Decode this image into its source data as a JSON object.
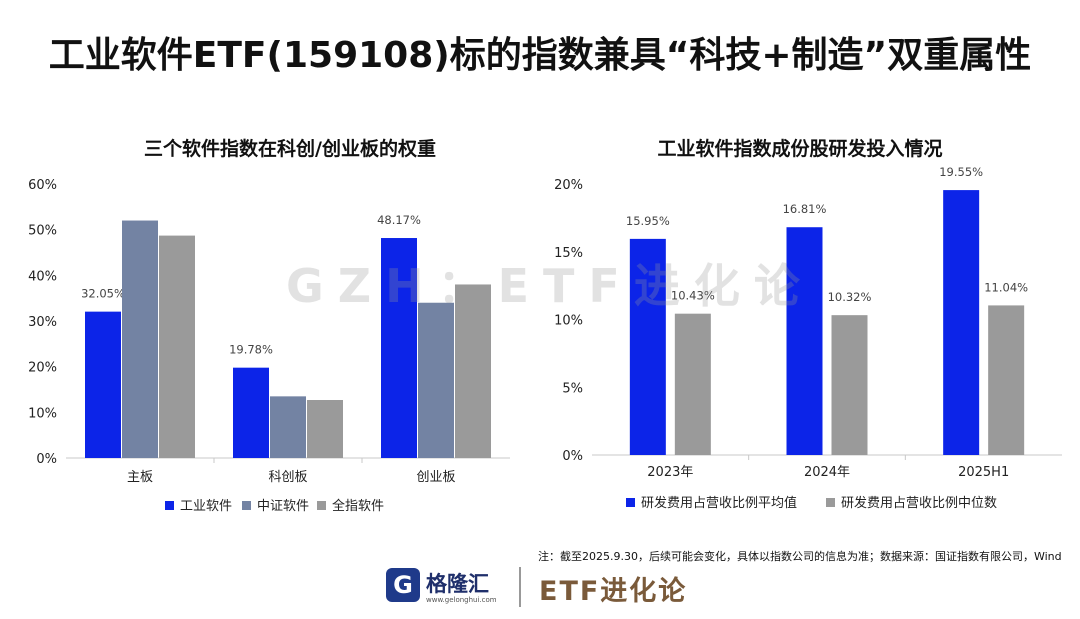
{
  "page": {
    "title": "工业软件ETF(159108)标的指数兼具“科技+制造”双重属性",
    "watermark": "GZH：ETF进化论",
    "footnote": "注：截至2025.9.30，后续可能会变化，具体以指数公司的信息为准；数据来源：国证指数有限公司，Wind",
    "logo_mark": "G",
    "logo_name": "格隆汇",
    "logo_url": "www.gelonghui.com",
    "brand": "ETF进化论"
  },
  "colors": {
    "blue": "#0c24e8",
    "slate": "#7383a3",
    "gray": "#9a9a9a"
  },
  "chart_data": [
    {
      "type": "bar",
      "title": "三个软件指数在科创/创业板的权重",
      "categories": [
        "主板",
        "科创板",
        "创业板"
      ],
      "y_ticks": [
        "60%",
        "50%",
        "40%",
        "30%",
        "20%",
        "10%",
        "0%"
      ],
      "ylim": [
        0,
        60
      ],
      "series": [
        {
          "name": "工业软件",
          "color": "#0c24e8",
          "values": [
            32.05,
            19.78,
            48.17
          ],
          "labels": [
            "32.05%",
            "19.78%",
            "48.17%"
          ]
        },
        {
          "name": "中证软件",
          "color": "#7383a3",
          "values": [
            52.0,
            13.5,
            34.0
          ],
          "labels": []
        },
        {
          "name": "全指软件",
          "color": "#9a9a9a",
          "values": [
            48.7,
            12.7,
            38.0
          ],
          "labels": []
        }
      ],
      "legend": [
        "工业软件",
        "中证软件",
        "全指软件"
      ]
    },
    {
      "type": "bar",
      "title": "工业软件指数成份股研发投入情况",
      "categories": [
        "2023年",
        "2024年",
        "2025H1"
      ],
      "y_ticks": [
        "20%",
        "15%",
        "10%",
        "5%",
        "0%"
      ],
      "ylim": [
        0,
        20
      ],
      "series": [
        {
          "name": "研发费用占营收比例平均值",
          "color": "#0c24e8",
          "values": [
            15.95,
            16.81,
            19.55
          ],
          "labels": [
            "15.95%",
            "16.81%",
            "19.55%"
          ]
        },
        {
          "name": "研发费用占营收比例中位数",
          "color": "#9a9a9a",
          "values": [
            10.43,
            10.32,
            11.04
          ],
          "labels": [
            "10.43%",
            "10.32%",
            "11.04%"
          ]
        }
      ],
      "legend": [
        "研发费用占营收比例平均值",
        "研发费用占营收比例中位数"
      ]
    }
  ]
}
